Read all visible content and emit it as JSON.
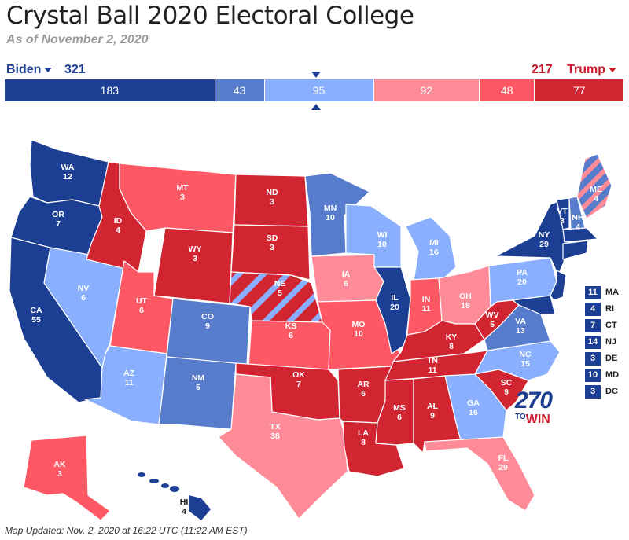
{
  "title": "Crystal Ball 2020 Electoral College",
  "subtitle": "As of November 2, 2020",
  "candidates": {
    "dem": {
      "name": "Biden",
      "total": "321"
    },
    "rep": {
      "name": "Trump",
      "total": "217"
    }
  },
  "bar_segments": [
    {
      "value": 183,
      "label": "183",
      "color": "#1c3f94"
    },
    {
      "value": 43,
      "label": "43",
      "color": "#577ccc"
    },
    {
      "value": 95,
      "label": "95",
      "color": "#8aafff"
    },
    {
      "value": 92,
      "label": "92",
      "color": "#ff8b98"
    },
    {
      "value": 48,
      "label": "48",
      "color": "#ff5865"
    },
    {
      "value": 77,
      "label": "77",
      "color": "#d22532"
    }
  ],
  "colors": {
    "safe_d": "#1c3f94",
    "likely_d": "#577ccc",
    "lean_d": "#8aafff",
    "lean_r": "#ff8b98",
    "likely_r": "#ff5865",
    "safe_r": "#d22532"
  },
  "states": [
    {
      "abbr": "WA",
      "ev": "12"
    },
    {
      "abbr": "OR",
      "ev": "7"
    },
    {
      "abbr": "CA",
      "ev": "55"
    },
    {
      "abbr": "NV",
      "ev": "6"
    },
    {
      "abbr": "ID",
      "ev": "4"
    },
    {
      "abbr": "MT",
      "ev": "3"
    },
    {
      "abbr": "WY",
      "ev": "3"
    },
    {
      "abbr": "UT",
      "ev": "6"
    },
    {
      "abbr": "AZ",
      "ev": "11"
    },
    {
      "abbr": "CO",
      "ev": "9"
    },
    {
      "abbr": "NM",
      "ev": "5"
    },
    {
      "abbr": "ND",
      "ev": "3"
    },
    {
      "abbr": "SD",
      "ev": "3"
    },
    {
      "abbr": "NE",
      "ev": "5"
    },
    {
      "abbr": "KS",
      "ev": "6"
    },
    {
      "abbr": "OK",
      "ev": "7"
    },
    {
      "abbr": "TX",
      "ev": "38"
    },
    {
      "abbr": "MN",
      "ev": "10"
    },
    {
      "abbr": "IA",
      "ev": "6"
    },
    {
      "abbr": "MO",
      "ev": "10"
    },
    {
      "abbr": "AR",
      "ev": "6"
    },
    {
      "abbr": "LA",
      "ev": "8"
    },
    {
      "abbr": "WI",
      "ev": "10"
    },
    {
      "abbr": "IL",
      "ev": "20"
    },
    {
      "abbr": "MI",
      "ev": "16"
    },
    {
      "abbr": "IN",
      "ev": "11"
    },
    {
      "abbr": "OH",
      "ev": "18"
    },
    {
      "abbr": "KY",
      "ev": "8"
    },
    {
      "abbr": "TN",
      "ev": "11"
    },
    {
      "abbr": "MS",
      "ev": "6"
    },
    {
      "abbr": "AL",
      "ev": "9"
    },
    {
      "abbr": "GA",
      "ev": "16"
    },
    {
      "abbr": "FL",
      "ev": "29"
    },
    {
      "abbr": "SC",
      "ev": "9"
    },
    {
      "abbr": "NC",
      "ev": "15"
    },
    {
      "abbr": "VA",
      "ev": "13"
    },
    {
      "abbr": "WV",
      "ev": "5"
    },
    {
      "abbr": "PA",
      "ev": "20"
    },
    {
      "abbr": "NY",
      "ev": "29"
    },
    {
      "abbr": "VT",
      "ev": "3"
    },
    {
      "abbr": "NH",
      "ev": "4"
    },
    {
      "abbr": "ME",
      "ev": "4"
    },
    {
      "abbr": "AK",
      "ev": "3"
    },
    {
      "abbr": "HI",
      "ev": "4"
    }
  ],
  "small_states": [
    {
      "ev": "11",
      "abbr": "MA"
    },
    {
      "ev": "4",
      "abbr": "RI"
    },
    {
      "ev": "7",
      "abbr": "CT"
    },
    {
      "ev": "14",
      "abbr": "NJ"
    },
    {
      "ev": "3",
      "abbr": "DE"
    },
    {
      "ev": "10",
      "abbr": "MD"
    },
    {
      "ev": "3",
      "abbr": "DC"
    }
  ],
  "logo": {
    "number": "270",
    "to": "TO",
    "win": "WIN"
  },
  "footer": "Map Updated: Nov. 2, 2020 at 16:22 UTC (11:22 AM EST)"
}
